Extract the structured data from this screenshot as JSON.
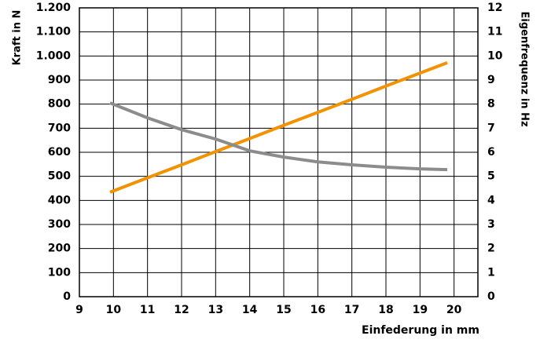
{
  "chart_data": {
    "type": "line",
    "x_label": "Einfederung in mm",
    "y_label": "Kraft in N",
    "y2_label": "Eigenfrequenz in Hz",
    "xlim": [
      9,
      20.7
    ],
    "xticks": [
      9,
      10,
      11,
      12,
      13,
      14,
      15,
      16,
      17,
      18,
      19,
      20
    ],
    "ylim": [
      0,
      1200
    ],
    "yticks": [
      0,
      100,
      200,
      300,
      400,
      500,
      600,
      700,
      800,
      900,
      {
        "value": 1000,
        "label": "1.000"
      },
      {
        "value": 1100,
        "label": "1.100"
      },
      {
        "value": 1200,
        "label": "1.200"
      }
    ],
    "y2lim": [
      0,
      12
    ],
    "y2ticks": [
      0,
      1,
      2,
      3,
      4,
      5,
      6,
      7,
      8,
      9,
      10,
      11,
      12
    ],
    "grid": true,
    "series": [
      {
        "color": "#f39200",
        "x": [
          9.9,
          11,
          12,
          13,
          14,
          15,
          16,
          17,
          18,
          19,
          19.8
        ],
        "values": [
          434,
          494,
          548,
          603,
          657,
          712,
          766,
          820,
          875,
          929,
          972
        ]
      },
      {
        "color": "#8c8c8c",
        "axis": "y2",
        "x": [
          9.9,
          11,
          12,
          13,
          14,
          15,
          16,
          17,
          18,
          19,
          19.8
        ],
        "values": [
          8.05,
          7.43,
          6.94,
          6.55,
          6.06,
          5.8,
          5.6,
          5.48,
          5.38,
          5.31,
          5.28
        ]
      }
    ]
  }
}
